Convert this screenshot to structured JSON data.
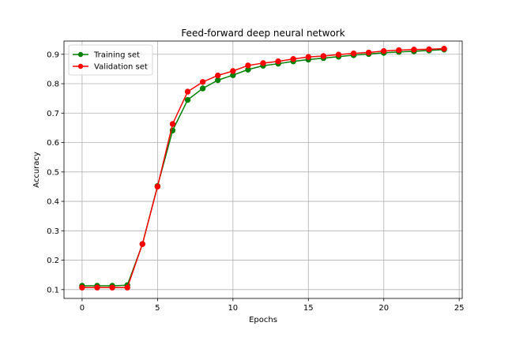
{
  "chart_data": {
    "type": "line",
    "title": "Feed-forward deep neural network",
    "xlabel": "Epochs",
    "ylabel": "Accuracy",
    "xlim": [
      -1.2,
      25.2
    ],
    "ylim": [
      0.07,
      0.945
    ],
    "xticks": [
      0,
      5,
      10,
      15,
      20,
      25
    ],
    "yticks": [
      0.1,
      0.2,
      0.3,
      0.4,
      0.5,
      0.6,
      0.7,
      0.8,
      0.9
    ],
    "grid": true,
    "legend_position": "top-left",
    "x": [
      0,
      1,
      2,
      3,
      4,
      5,
      6,
      7,
      8,
      9,
      10,
      11,
      12,
      13,
      14,
      15,
      16,
      17,
      18,
      19,
      20,
      21,
      22,
      23,
      24
    ],
    "series": [
      {
        "name": "Training set",
        "color": "#008000",
        "values": [
          0.113,
          0.113,
          0.113,
          0.115,
          0.255,
          0.452,
          0.641,
          0.745,
          0.784,
          0.812,
          0.829,
          0.848,
          0.861,
          0.868,
          0.876,
          0.882,
          0.887,
          0.892,
          0.897,
          0.901,
          0.905,
          0.908,
          0.91,
          0.913,
          0.916
        ]
      },
      {
        "name": "Validation set",
        "color": "#ff0000",
        "values": [
          0.107,
          0.107,
          0.107,
          0.107,
          0.255,
          0.45,
          0.663,
          0.773,
          0.806,
          0.828,
          0.843,
          0.862,
          0.87,
          0.876,
          0.884,
          0.891,
          0.894,
          0.899,
          0.903,
          0.906,
          0.911,
          0.914,
          0.916,
          0.917,
          0.919
        ]
      }
    ]
  }
}
